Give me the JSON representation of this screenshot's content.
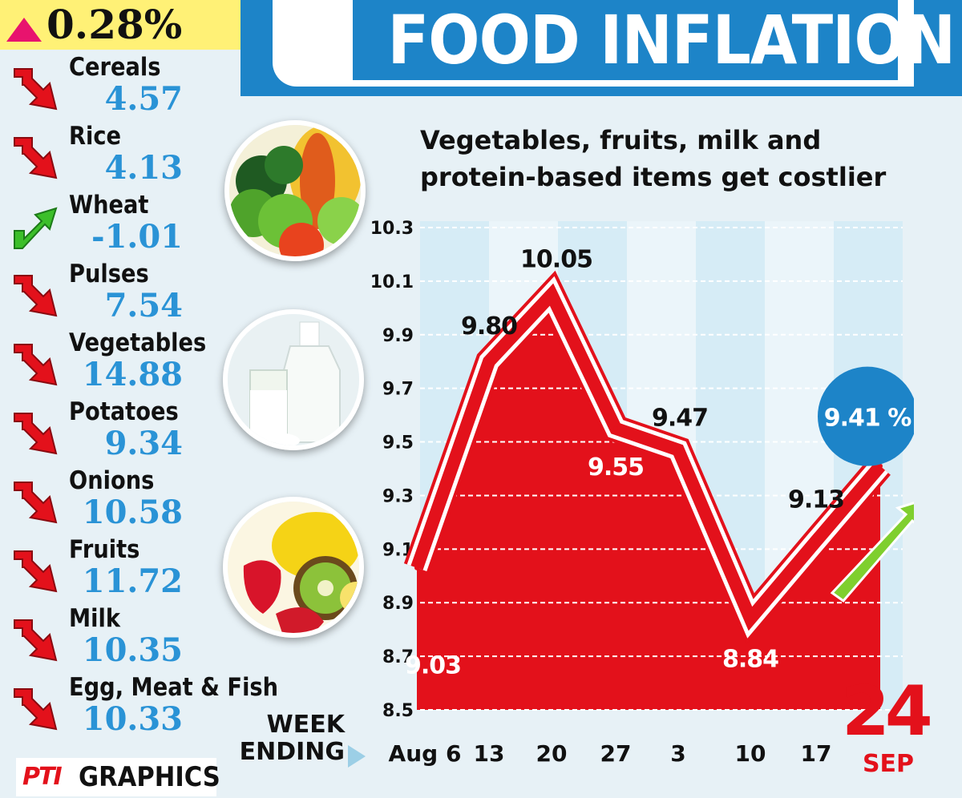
{
  "header": {
    "title": "FOOD INFLATION",
    "overall_change": "0.28%"
  },
  "commodities": [
    {
      "name": "Cereals",
      "value": "4.57",
      "trend": "down"
    },
    {
      "name": "Rice",
      "value": "4.13",
      "trend": "down"
    },
    {
      "name": "Wheat",
      "value": "-1.01",
      "trend": "up"
    },
    {
      "name": "Pulses",
      "value": "7.54",
      "trend": "down"
    },
    {
      "name": "Vegetables",
      "value": "14.88",
      "trend": "down"
    },
    {
      "name": "Potatoes",
      "value": "9.34",
      "trend": "down"
    },
    {
      "name": "Onions",
      "value": "10.58",
      "trend": "down"
    },
    {
      "name": "Fruits",
      "value": "11.72",
      "trend": "down"
    },
    {
      "name": "Milk",
      "value": "10.35",
      "trend": "down"
    },
    {
      "name": "Egg, Meat & Fish",
      "value": "10.33",
      "trend": "down"
    }
  ],
  "colors": {
    "accent_blue": "#1d84c8",
    "value_blue": "#2a93d6",
    "red": "#e3111b",
    "up_green": "#3cbf2a",
    "badge_yellow": "#fff176",
    "badge_pink": "#e8136e"
  },
  "chart_data": {
    "type": "area",
    "title": "Vegetables, fruits, milk and protein-based items get costlier",
    "xlabel": "WEEK ENDING",
    "ylabel": "",
    "categories": [
      "Aug 6",
      "13",
      "20",
      "27",
      "3",
      "10",
      "17",
      "24"
    ],
    "values": [
      9.03,
      9.8,
      10.05,
      9.55,
      9.47,
      8.84,
      9.13,
      9.41
    ],
    "data_labels": [
      "9.03",
      "9.80",
      "10.05",
      "9.55",
      "9.47",
      "8.84",
      "9.13",
      "9.41 %"
    ],
    "ylim": [
      8.5,
      10.3
    ],
    "yticks": [
      "8.5",
      "8.7",
      "8.9",
      "9.1",
      "9.3",
      "9.5",
      "9.7",
      "9.9",
      "10.1",
      "10.3"
    ],
    "latest_day": "24",
    "latest_month": "SEP",
    "grid": true
  },
  "source": {
    "brand": "PTI",
    "label": "GRAPHICS"
  },
  "photos": [
    "vegetables-photo",
    "milk-photo",
    "fruits-photo"
  ]
}
